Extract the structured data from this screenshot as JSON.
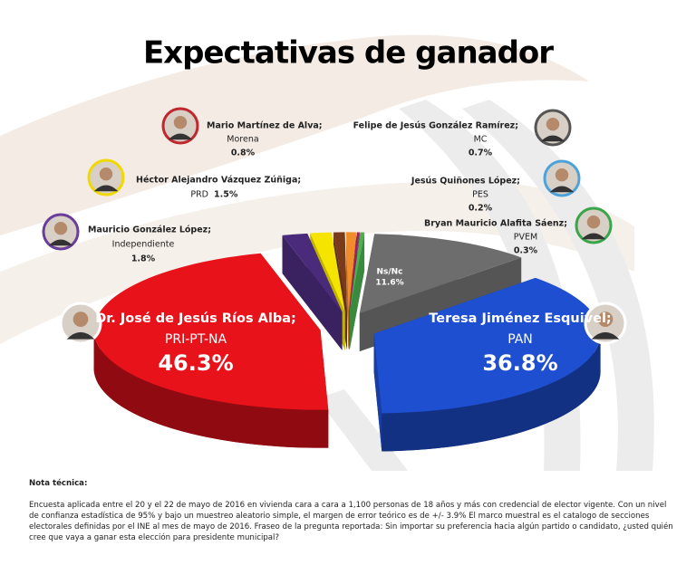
{
  "chart_data": {
    "type": "pie",
    "title": "Expectativas de ganador",
    "categories": [
      "Mario Martínez de Alva;",
      "Felipe de Jesús González Ramírez;",
      "Jesús Quiñones López;",
      "Bryan Mauricio Alafita Sáenz;",
      "Ns/Nc",
      "Teresa Jiménez Esquivel;",
      "Dr. José de Jesús Ríos Alba;",
      "Mauricio González López;",
      "Héctor Alejandro Vázquez Zúñiga;"
    ],
    "parties": [
      "Morena",
      "MC",
      "PES",
      "PVEM",
      null,
      "PAN",
      "PRI-PT-NA",
      "Independiente",
      "PRD"
    ],
    "values": [
      0.8,
      0.7,
      0.2,
      0.3,
      11.6,
      36.8,
      46.3,
      1.8,
      1.5
    ],
    "value_labels": [
      "0.8%",
      "0.7%",
      "0.2%",
      "0.3%",
      "11.6%",
      "36.8%",
      "46.3%",
      "1.8%",
      "1.5%"
    ],
    "colors": [
      "#7a3b1a",
      "#f28c28",
      "#9e1f63",
      "#4caf50",
      "#6d6d6d",
      "#1f4fd1",
      "#e8121b",
      "#4a2a7a",
      "#f5e400"
    ],
    "note_title": "Nota técnica:",
    "note": "Encuesta aplicada entre el 20 y el 22 de mayo de 2016 en vivienda cara a cara a 1,100 personas de 18 años y más con credencial de elector vigente. Con un nivel de confianza estadística de 95% y bajo un muestreo aleatorio simple, el margen de error teórico es de +/- 3.9% El marco muestral es el catalogo de secciones electorales definidas por el INE al mes de mayo de 2016. Fraseo de la pregunta reportada: Sin importar su preferencia hacia algún partido o candidato, ¿usted quién cree que vaya a ganar esta elección para presidente municipal?"
  }
}
